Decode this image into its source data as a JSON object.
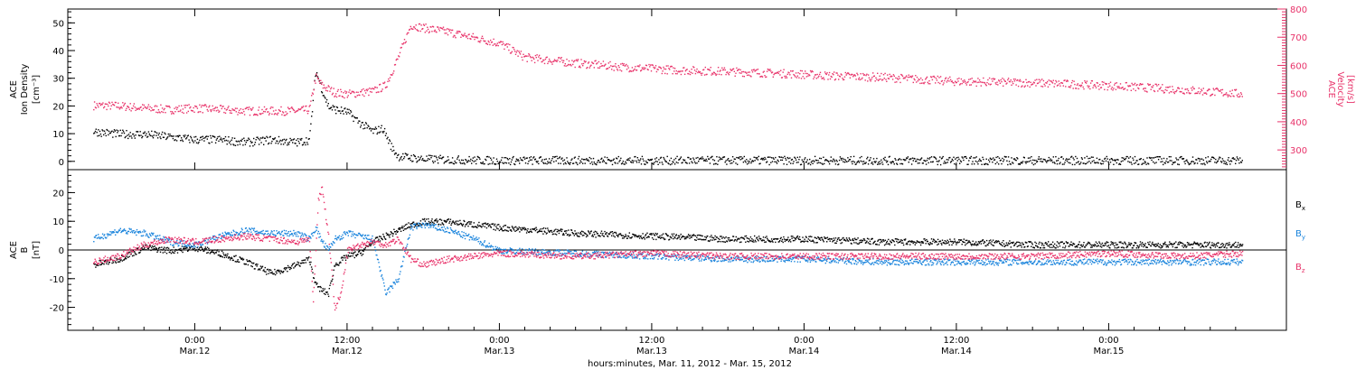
{
  "chart_data": [
    {
      "type": "scatter",
      "panel": "top",
      "ylabel_left": [
        "ACE",
        "Ion Density",
        "[cm⁻³]"
      ],
      "ylabel_right": [
        "ACE",
        "Velocity",
        "[km/s]"
      ],
      "ylim_left": [
        -3,
        55
      ],
      "ylim_right": [
        230,
        800
      ],
      "yticks_left": [
        "0",
        "10",
        "20",
        "30",
        "40",
        "50"
      ],
      "yticks_right": [
        "300",
        "400",
        "500",
        "600",
        "700",
        "800"
      ],
      "colors": {
        "density": "#000000",
        "velocity": "#e8336a"
      },
      "series": [
        {
          "axis": "left",
          "hours": [
            -8,
            -6,
            -4,
            -2,
            0,
            2,
            4,
            6,
            8,
            9,
            9.5,
            10,
            10.5,
            11,
            12,
            13,
            14,
            14.8,
            15.5,
            16,
            18,
            20,
            22,
            24,
            36,
            48,
            60,
            72,
            82.5
          ],
          "values": [
            11,
            10,
            10,
            9,
            8,
            8,
            7,
            8,
            7,
            8,
            33,
            26,
            20,
            19,
            18,
            14,
            11,
            12,
            5,
            2,
            1,
            0.8,
            0.6,
            0.5,
            0.5,
            0.5,
            0.5,
            0.5,
            0.5
          ]
        },
        {
          "axis": "right",
          "hours": [
            -8,
            -6,
            -4,
            -2,
            0,
            2,
            4,
            6,
            8,
            9,
            9.5,
            10,
            11,
            12,
            13,
            14,
            15,
            16,
            17,
            18,
            20,
            22,
            24,
            26,
            30,
            34,
            38,
            42,
            48,
            50,
            54,
            60,
            66,
            72,
            78,
            82.5
          ],
          "values": [
            460,
            458,
            450,
            445,
            450,
            445,
            440,
            440,
            440,
            445,
            560,
            530,
            505,
            500,
            505,
            510,
            530,
            630,
            745,
            735,
            720,
            700,
            680,
            630,
            610,
            595,
            585,
            580,
            570,
            565,
            560,
            545,
            540,
            530,
            515,
            500
          ]
        }
      ]
    },
    {
      "type": "scatter",
      "panel": "bottom",
      "ylabel": [
        "ACE",
        "B",
        "[nT]"
      ],
      "ylim": [
        -28,
        28
      ],
      "yticks": [
        "-20",
        "-10",
        "0",
        "10",
        "20"
      ],
      "legend": [
        "B",
        "B",
        "B"
      ],
      "legend_subscripts": [
        "x",
        "y",
        "z"
      ],
      "colors": {
        "bx": "#000000",
        "by": "#1a84dc",
        "bz": "#e8336a"
      },
      "series": [
        {
          "name": "Bx",
          "hours": [
            -8,
            -6,
            -4,
            -2,
            0,
            2,
            4,
            6,
            8,
            9,
            9.5,
            10,
            10.5,
            11,
            12,
            13,
            14,
            15,
            16,
            17,
            18,
            20,
            22,
            24,
            30,
            36,
            42,
            48,
            54,
            60,
            66,
            72,
            78,
            82.5
          ],
          "values": [
            -5,
            -3,
            1,
            0,
            1,
            -1,
            -4,
            -8,
            -5,
            -3,
            -12,
            -14,
            -15,
            -5,
            -2,
            -1,
            3,
            5,
            7,
            9,
            10,
            10,
            9,
            8,
            6,
            5,
            4,
            4,
            3,
            3,
            2,
            2,
            2,
            2
          ]
        },
        {
          "name": "By",
          "hours": [
            -8,
            -6,
            -4,
            -2,
            0,
            2,
            4,
            6,
            8,
            9,
            9.5,
            10,
            10.5,
            11,
            12,
            13,
            14,
            15,
            16,
            17,
            18,
            20,
            22,
            24,
            30,
            36,
            42,
            48,
            54,
            60,
            66,
            72,
            78,
            82.5
          ],
          "values": [
            4,
            7,
            6,
            3,
            2,
            5,
            7,
            6,
            6,
            4,
            8,
            3,
            0,
            4,
            6,
            5,
            4,
            -15,
            -10,
            8,
            9,
            7,
            4,
            0,
            -1,
            -2,
            -3,
            -3,
            -4,
            -4,
            -4,
            -4,
            -4,
            -4
          ]
        },
        {
          "name": "Bz",
          "hours": [
            -8,
            -6,
            -4,
            -2,
            0,
            2,
            4,
            6,
            8,
            9,
            9.3,
            9.7,
            10,
            10.5,
            11,
            11.5,
            12,
            13,
            14,
            15,
            16,
            17,
            18,
            20,
            22,
            24,
            30,
            36,
            42,
            48,
            54,
            60,
            66,
            72,
            78,
            82.5
          ],
          "values": [
            -4,
            -2,
            2,
            4,
            3,
            4,
            5,
            4,
            3,
            4,
            -18,
            18,
            22,
            5,
            -20,
            -15,
            0,
            2,
            3,
            2,
            4,
            -3,
            -5,
            -3,
            -2,
            -1,
            -2,
            -1,
            -2,
            -2,
            -2,
            -2,
            -2,
            -1,
            -2,
            -1
          ]
        }
      ]
    }
  ],
  "x_axis": {
    "xlim_hours": [
      -10,
      86
    ],
    "major_labels_time": [
      "0:00",
      "12:00",
      "0:00",
      "12:00",
      "0:00",
      "12:00",
      "0:00"
    ],
    "major_labels_date": [
      "Mar.12",
      "Mar.12",
      "Mar.13",
      "Mar.13",
      "Mar.14",
      "Mar.14",
      "Mar.15"
    ],
    "xlabel": "hours:minutes, Mar. 11, 2012 - Mar. 15, 2012"
  }
}
